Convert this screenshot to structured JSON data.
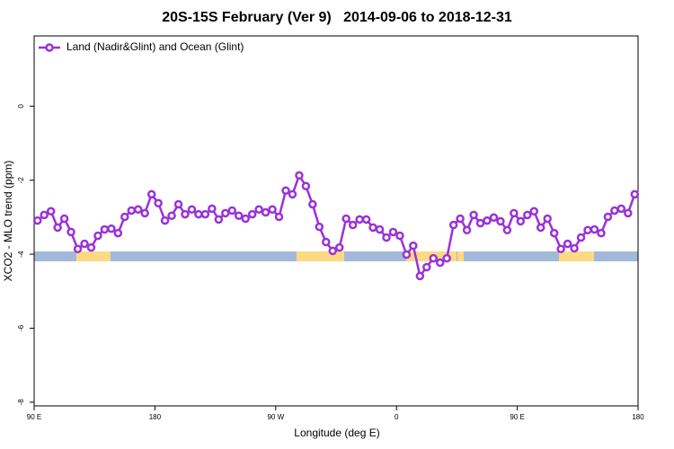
{
  "chart_data": {
    "type": "line",
    "title": "20S-15S February (Ver 9)   2014-09-06 to 2018-12-31",
    "x_label": "Longitude (deg E)",
    "y_label": "XCO2 - MLO trend (ppm)",
    "xlim": [
      90,
      540
    ],
    "xticks": [
      {
        "value": 90,
        "label": "90 E"
      },
      {
        "value": 180,
        "label": "180"
      },
      {
        "value": 270,
        "label": "90 W"
      },
      {
        "value": 360,
        "label": "0"
      },
      {
        "value": 450,
        "label": "90 E"
      },
      {
        "value": 540,
        "label": "180"
      }
    ],
    "ylim": [
      -8.1,
      1.9
    ],
    "yticks": [
      -8,
      -6,
      -4,
      -2,
      0
    ],
    "legend": "top-left",
    "x": [
      92.5,
      97.5,
      102.5,
      107.5,
      112.5,
      117.5,
      122.5,
      127.5,
      132.5,
      137.5,
      142.5,
      147.5,
      152.5,
      157.5,
      162.5,
      167.5,
      172.5,
      177.5,
      182.5,
      187.5,
      192.5,
      197.5,
      202.5,
      207.5,
      212.5,
      217.5,
      222.5,
      227.5,
      232.5,
      237.5,
      242.5,
      247.5,
      252.5,
      257.5,
      262.5,
      267.5,
      272.5,
      277.5,
      282.5,
      287.5,
      292.5,
      297.5,
      302.5,
      307.5,
      312.5,
      317.5,
      322.5,
      327.5,
      332.5,
      337.5,
      342.5,
      347.5,
      352.5,
      357.5,
      362.5,
      367.5,
      372.5,
      377.5,
      382.5,
      387.5,
      392.5,
      397.5,
      402.5,
      407.5,
      412.5,
      417.5,
      422.5,
      427.5,
      432.5,
      437.5,
      442.5,
      447.5,
      452.5,
      457.5,
      462.5,
      467.5,
      472.5,
      477.5,
      482.5,
      487.5,
      492.5,
      497.5,
      502.5,
      507.5,
      512.5,
      517.5,
      522.5,
      527.5,
      532.5,
      537.5
    ],
    "series": [
      {
        "name": "Land (Nadir&Glint) and Ocean (Glint)",
        "color": "#9a32d8",
        "values": [
          -3.09,
          -2.94,
          -2.84,
          -3.28,
          -3.04,
          -3.4,
          -3.86,
          -3.72,
          -3.82,
          -3.5,
          -3.33,
          -3.31,
          -3.43,
          -2.99,
          -2.82,
          -2.79,
          -2.89,
          -2.38,
          -2.62,
          -3.09,
          -2.96,
          -2.65,
          -2.92,
          -2.79,
          -2.92,
          -2.92,
          -2.77,
          -3.06,
          -2.89,
          -2.82,
          -2.96,
          -3.04,
          -2.92,
          -2.79,
          -2.87,
          -2.79,
          -2.99,
          -2.28,
          -2.38,
          -1.87,
          -2.16,
          -2.65,
          -3.26,
          -3.67,
          -3.91,
          -3.82,
          -3.04,
          -3.21,
          -3.06,
          -3.06,
          -3.28,
          -3.33,
          -3.55,
          -3.4,
          -3.5,
          -4.01,
          -3.77,
          -4.59,
          -4.35,
          -4.11,
          -4.23,
          -4.11,
          -3.21,
          -3.04,
          -3.35,
          -2.94,
          -3.16,
          -3.09,
          -3.01,
          -3.11,
          -3.35,
          -2.89,
          -3.11,
          -2.94,
          -2.84,
          -3.28,
          -3.04,
          -3.43,
          -3.86,
          -3.72,
          -3.84,
          -3.55,
          -3.35,
          -3.33,
          -3.43,
          -2.99,
          -2.82,
          -2.77,
          -2.89,
          -2.38
        ]
      }
    ]
  }
}
